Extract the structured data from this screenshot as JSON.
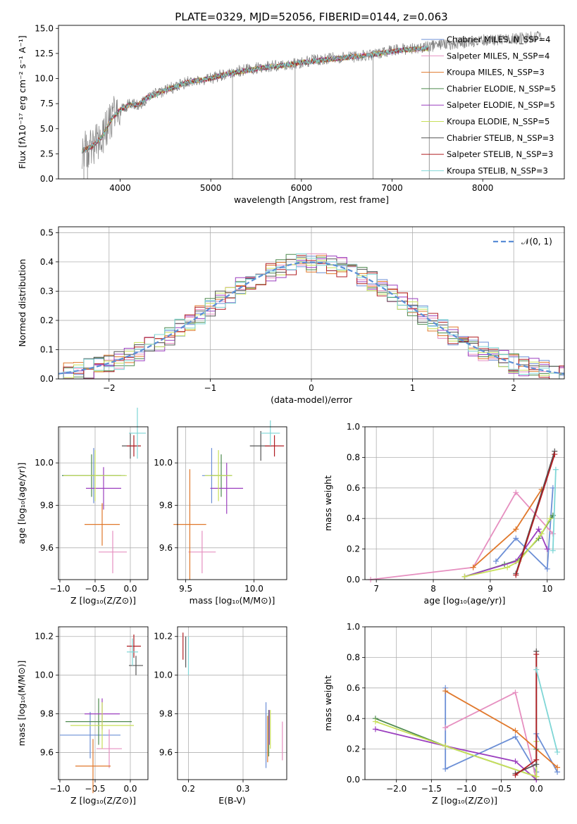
{
  "title": "PLATE=0329, MJD=52056, FIBERID=0144, z=0.063",
  "legend_colors": [
    "#6c8fd6",
    "#e68fc0",
    "#e0782b",
    "#4e8a4e",
    "#9b3fbf",
    "#c8e05a",
    "#555555",
    "#b01e23",
    "#7fd6d6"
  ],
  "chart_data": [
    {
      "id": "spectrum",
      "type": "line",
      "xlabel": "wavelength [Angstrom, rest frame]",
      "ylabel": "Flux [fλ10⁻¹⁷ erg cm⁻² s⁻¹ A⁻¹]",
      "xlim": [
        3320,
        8900
      ],
      "ylim": [
        0,
        15.3
      ],
      "xticks": [
        4000,
        5000,
        6000,
        7000,
        8000
      ],
      "xtick_labels": [
        "4000",
        "5000",
        "6000",
        "7000",
        "8000"
      ],
      "yticks": [
        0,
        2.5,
        5,
        7.5,
        10,
        12.5,
        15
      ],
      "ytick_labels": [
        "0.0",
        "2.5",
        "5.0",
        "7.5",
        "10.0",
        "12.5",
        "15.0"
      ],
      "grid": false,
      "legend_position": "lower-right",
      "legend": [
        "Chabrier MILES, N_SSP=4",
        "Salpeter MILES, N_SSP=4",
        "Kroupa MILES, N_SSP=3",
        "Chabrier ELODIE, N_SSP=5",
        "Salpeter ELODIE, N_SSP=5",
        "Kroupa ELODIE, N_SSP=5",
        "Chabrier STELIB, N_SSP=3",
        "Salpeter STELIB, N_SSP=3",
        "Kroupa STELIB, N_SSP=3"
      ],
      "data_series": {
        "x": [
          3580,
          3700,
          3800,
          3900,
          4000,
          4100,
          4200,
          4300,
          4400,
          4500,
          4600,
          4700,
          4800,
          4900,
          5000,
          5200,
          5400,
          5600,
          5800,
          6000,
          6200,
          6400,
          6600,
          6800,
          7000,
          7200,
          7400,
          7600,
          7800,
          8000,
          8200,
          8400,
          8650
        ],
        "y": [
          3.0,
          3.2,
          4.0,
          6.0,
          6.8,
          7.5,
          7.3,
          8.0,
          8.5,
          8.8,
          9.2,
          9.5,
          9.8,
          9.8,
          10.0,
          10.6,
          10.9,
          11.2,
          11.3,
          11.6,
          11.9,
          12.1,
          12.2,
          12.4,
          12.8,
          13.0,
          13.2,
          13.4,
          13.6,
          13.8,
          13.9,
          14.0,
          14.2
        ]
      },
      "model_series": {
        "x": [
          3580,
          3700,
          3800,
          3900,
          4000,
          4100,
          4200,
          4300,
          4400,
          4500,
          4600,
          4700,
          4800,
          4900,
          5000,
          5200,
          5400,
          5600,
          5800,
          6000,
          6200,
          6400,
          6600,
          6800,
          7000,
          7200,
          7400
        ],
        "y": [
          2.8,
          3.3,
          4.2,
          5.9,
          6.9,
          7.4,
          7.4,
          8.1,
          8.4,
          8.9,
          9.1,
          9.5,
          9.7,
          9.9,
          10.0,
          10.5,
          10.8,
          11.1,
          11.3,
          11.6,
          11.8,
          12.0,
          12.2,
          12.4,
          12.7,
          12.9,
          13.0
        ]
      }
    },
    {
      "id": "residuals",
      "type": "histogram",
      "xlabel": "(data-model)/error",
      "ylabel": "Normed distribution",
      "xlim": [
        -2.5,
        2.5
      ],
      "ylim": [
        0,
        0.52
      ],
      "xticks": [
        -2,
        -1,
        0,
        1,
        2
      ],
      "xtick_labels": [
        "−2",
        "−1",
        "0",
        "1",
        "2"
      ],
      "yticks": [
        0,
        0.1,
        0.2,
        0.3,
        0.4,
        0.5
      ],
      "ytick_labels": [
        "0.0",
        "0.1",
        "0.2",
        "0.3",
        "0.4",
        "0.5"
      ],
      "grid": true,
      "legend_position": "top-right",
      "legend": [
        "𝒩(0, 1)"
      ],
      "bin_width": 0.1
    },
    {
      "id": "age-vs-Z",
      "type": "scatter",
      "xlabel": "Z [log₁₀(Z/Z⊙)]",
      "ylabel": "age  [log₁₀(age/yr)]",
      "xlim": [
        -1.02,
        0.25
      ],
      "ylim": [
        9.45,
        10.17
      ],
      "xticks": [
        -1.0,
        -0.5,
        0.0
      ],
      "xtick_labels": [
        "−1.0",
        "−0.5",
        "0.0"
      ],
      "yticks": [
        9.6,
        9.8,
        10.0
      ],
      "ytick_labels": [
        "9.6",
        "9.8",
        "10.0"
      ],
      "grid": true,
      "points": [
        {
          "x": -0.52,
          "y": 9.94,
          "xerr": 0.45,
          "yerr": 0.13
        },
        {
          "x": -0.25,
          "y": 9.58,
          "xerr": 0.2,
          "yerr": 0.1
        },
        {
          "x": -0.4,
          "y": 9.71,
          "xerr": 0.25,
          "yerr": 0.1
        },
        {
          "x": -0.55,
          "y": 9.94,
          "xerr": 0.42,
          "yerr": 0.1
        },
        {
          "x": -0.38,
          "y": 9.88,
          "xerr": 0.25,
          "yerr": 0.1
        },
        {
          "x": -0.5,
          "y": 9.94,
          "xerr": 0.45,
          "yerr": 0.12
        },
        {
          "x": 0.0,
          "y": 10.08,
          "xerr": 0.12,
          "yerr": 0.06
        },
        {
          "x": 0.05,
          "y": 10.08,
          "xerr": 0.1,
          "yerr": 0.05
        },
        {
          "x": 0.1,
          "y": 10.14,
          "xerr": 0.12,
          "yerr": 0.12
        }
      ]
    },
    {
      "id": "age-vs-mass",
      "type": "scatter",
      "xlabel": "mass [log₁₀(M/M⊙)]",
      "ylabel": "",
      "xlim": [
        9.44,
        10.24
      ],
      "ylim": [
        9.45,
        10.17
      ],
      "xticks": [
        9.5,
        10.0
      ],
      "xtick_labels": [
        "9.5",
        "10.0"
      ],
      "yticks": [
        9.6,
        9.8,
        10.0
      ],
      "ytick_labels": [
        "9.6",
        "9.8",
        "10.0"
      ],
      "grid": true,
      "points": [
        {
          "x": 9.69,
          "y": 9.94,
          "xerr": 0.07,
          "yerr": 0.13
        },
        {
          "x": 9.62,
          "y": 9.58,
          "xerr": 0.1,
          "yerr": 0.1
        },
        {
          "x": 9.53,
          "y": 9.71,
          "xerr": 0.12,
          "yerr": 0.26
        },
        {
          "x": 9.76,
          "y": 9.94,
          "xerr": 0.08,
          "yerr": 0.1
        },
        {
          "x": 9.8,
          "y": 9.88,
          "xerr": 0.12,
          "yerr": 0.12
        },
        {
          "x": 9.74,
          "y": 9.94,
          "xerr": 0.1,
          "yerr": 0.12
        },
        {
          "x": 10.05,
          "y": 10.08,
          "xerr": 0.08,
          "yerr": 0.07
        },
        {
          "x": 10.15,
          "y": 10.08,
          "xerr": 0.07,
          "yerr": 0.05
        },
        {
          "x": 10.12,
          "y": 10.14,
          "xerr": 0.07,
          "yerr": 0.06
        }
      ]
    },
    {
      "id": "weight-vs-age",
      "type": "line",
      "xlabel": "age  [log₁₀(age/yr)]",
      "ylabel": "mass weight",
      "xlim": [
        6.8,
        10.3
      ],
      "ylim": [
        0,
        1
      ],
      "xticks": [
        7,
        8,
        9,
        10
      ],
      "xtick_labels": [
        "7",
        "8",
        "9",
        "10"
      ],
      "yticks": [
        0,
        0.2,
        0.4,
        0.6,
        0.8,
        1.0
      ],
      "ytick_labels": [
        "0.0",
        "0.2",
        "0.4",
        "0.6",
        "0.8",
        "1.0"
      ],
      "grid": true,
      "series": [
        {
          "x": [
            9.1,
            9.45,
            10.0,
            10.1
          ],
          "y": [
            0.12,
            0.27,
            0.07,
            0.6
          ]
        },
        {
          "x": [
            6.9,
            8.7,
            9.45,
            10.1
          ],
          "y": [
            0.0,
            0.08,
            0.57,
            0.3
          ]
        },
        {
          "x": [
            8.7,
            9.45,
            9.9
          ],
          "y": [
            0.08,
            0.33,
            0.59
          ]
        },
        {
          "x": [
            8.55,
            9.25,
            9.5,
            9.85,
            10.1
          ],
          "y": [
            0.02,
            0.1,
            0.13,
            0.27,
            0.42
          ]
        },
        {
          "x": [
            8.55,
            9.45,
            9.85,
            10.0
          ],
          "y": [
            0.02,
            0.12,
            0.33,
            0.2
          ]
        },
        {
          "x": [
            8.55,
            9.3,
            9.5,
            9.9,
            10.05
          ],
          "y": [
            0.02,
            0.08,
            0.12,
            0.3,
            0.4
          ]
        },
        {
          "x": [
            9.45,
            10.13
          ],
          "y": [
            0.04,
            0.84
          ]
        },
        {
          "x": [
            9.45,
            10.13
          ],
          "y": [
            0.03,
            0.82
          ]
        },
        {
          "x": [
            10.1,
            10.15
          ],
          "y": [
            0.19,
            0.72
          ]
        }
      ]
    },
    {
      "id": "mass-vs-Z",
      "type": "scatter",
      "xlabel": "Z [log₁₀(Z/Z⊙)]",
      "ylabel": "mass [log₁₀(M/M⊙)]",
      "xlim": [
        -1.02,
        0.25
      ],
      "ylim": [
        9.46,
        10.25
      ],
      "xticks": [
        -1.0,
        -0.5,
        0.0
      ],
      "xtick_labels": [
        "−1.0",
        "−0.5",
        "0.0"
      ],
      "yticks": [
        9.6,
        9.8,
        10.0,
        10.2
      ],
      "ytick_labels": [
        "9.6",
        "9.8",
        "10.0",
        "10.2"
      ],
      "grid": true,
      "points": [
        {
          "x": -0.57,
          "y": 9.69,
          "xerr": 0.43,
          "yerr": 0.12
        },
        {
          "x": -0.3,
          "y": 9.62,
          "xerr": 0.18,
          "yerr": 0.1
        },
        {
          "x": -0.53,
          "y": 9.53,
          "xerr": 0.25,
          "yerr": 0.14
        },
        {
          "x": -0.45,
          "y": 9.76,
          "xerr": 0.47,
          "yerr": 0.12
        },
        {
          "x": -0.4,
          "y": 9.8,
          "xerr": 0.25,
          "yerr": 0.08
        },
        {
          "x": -0.4,
          "y": 9.74,
          "xerr": 0.45,
          "yerr": 0.12
        },
        {
          "x": 0.08,
          "y": 10.05,
          "xerr": 0.1,
          "yerr": 0.05
        },
        {
          "x": 0.05,
          "y": 10.15,
          "xerr": 0.1,
          "yerr": 0.06
        },
        {
          "x": 0.03,
          "y": 10.12,
          "xerr": 0.08,
          "yerr": 0.07
        }
      ]
    },
    {
      "id": "mass-vs-EBV",
      "type": "scatter",
      "xlabel": "E(B-V)",
      "ylabel": "",
      "xlim": [
        0.18,
        0.38
      ],
      "ylim": [
        9.46,
        10.25
      ],
      "xticks": [
        0.2,
        0.3
      ],
      "xtick_labels": [
        "0.2",
        "0.3"
      ],
      "yticks": [
        9.6,
        9.8,
        10.0,
        10.2
      ],
      "ytick_labels": [
        "9.6",
        "9.8",
        "10.0",
        "10.2"
      ],
      "grid": true,
      "points": [
        {
          "x": 0.342,
          "y": 9.69,
          "yerr": 0.17
        },
        {
          "x": 0.372,
          "y": 9.66,
          "yerr": 0.1
        },
        {
          "x": 0.345,
          "y": 9.67,
          "yerr": 0.12
        },
        {
          "x": 0.347,
          "y": 9.7,
          "yerr": 0.12
        },
        {
          "x": 0.348,
          "y": 9.73,
          "yerr": 0.09
        },
        {
          "x": 0.35,
          "y": 9.72,
          "yerr": 0.1
        },
        {
          "x": 0.195,
          "y": 10.12,
          "yerr": 0.08
        },
        {
          "x": 0.19,
          "y": 10.15,
          "yerr": 0.07
        },
        {
          "x": 0.2,
          "y": 10.1,
          "yerr": 0.1
        }
      ]
    },
    {
      "id": "weight-vs-Z",
      "type": "line",
      "xlabel": "Z [log₁₀(Z/Z⊙)]",
      "ylabel": "mass weight",
      "xlim": [
        -2.45,
        0.4
      ],
      "ylim": [
        0,
        1
      ],
      "xticks": [
        -2.0,
        -1.5,
        -1.0,
        -0.5,
        0.0
      ],
      "xtick_labels": [
        "−2.0",
        "−1.5",
        "−1.0",
        "−0.5",
        "0.0"
      ],
      "yticks": [
        0,
        0.2,
        0.4,
        0.6,
        0.8,
        1.0
      ],
      "ytick_labels": [
        "0.0",
        "0.2",
        "0.4",
        "0.6",
        "0.8",
        "1.0"
      ],
      "grid": true,
      "series": [
        {
          "x": [
            -1.3,
            -1.3,
            -0.3,
            0.0,
            0.0,
            0.3
          ],
          "y": [
            0.6,
            0.07,
            0.28,
            0.05,
            0.3,
            0.05
          ]
        },
        {
          "x": [
            -1.3,
            -0.3,
            0.0
          ],
          "y": [
            0.34,
            0.57,
            0.0
          ]
        },
        {
          "x": [
            -1.3,
            -0.3,
            0.3
          ],
          "y": [
            0.58,
            0.32,
            0.08
          ]
        },
        {
          "x": [
            -2.3,
            -1.3,
            0.0,
            0.0
          ],
          "y": [
            0.4,
            0.22,
            0.02,
            0.2
          ]
        },
        {
          "x": [
            -2.3,
            -1.3,
            -0.3,
            0.0
          ],
          "y": [
            0.33,
            0.22,
            0.12,
            0.0
          ]
        },
        {
          "x": [
            -2.3,
            -1.3,
            0.0,
            0.0
          ],
          "y": [
            0.38,
            0.22,
            0.02,
            0.25
          ]
        },
        {
          "x": [
            -0.3,
            0.0,
            0.0
          ],
          "y": [
            0.04,
            0.1,
            0.84
          ]
        },
        {
          "x": [
            -0.3,
            0.0,
            0.0
          ],
          "y": [
            0.03,
            0.13,
            0.82
          ]
        },
        {
          "x": [
            0.0,
            0.3
          ],
          "y": [
            0.72,
            0.18
          ]
        }
      ]
    }
  ]
}
